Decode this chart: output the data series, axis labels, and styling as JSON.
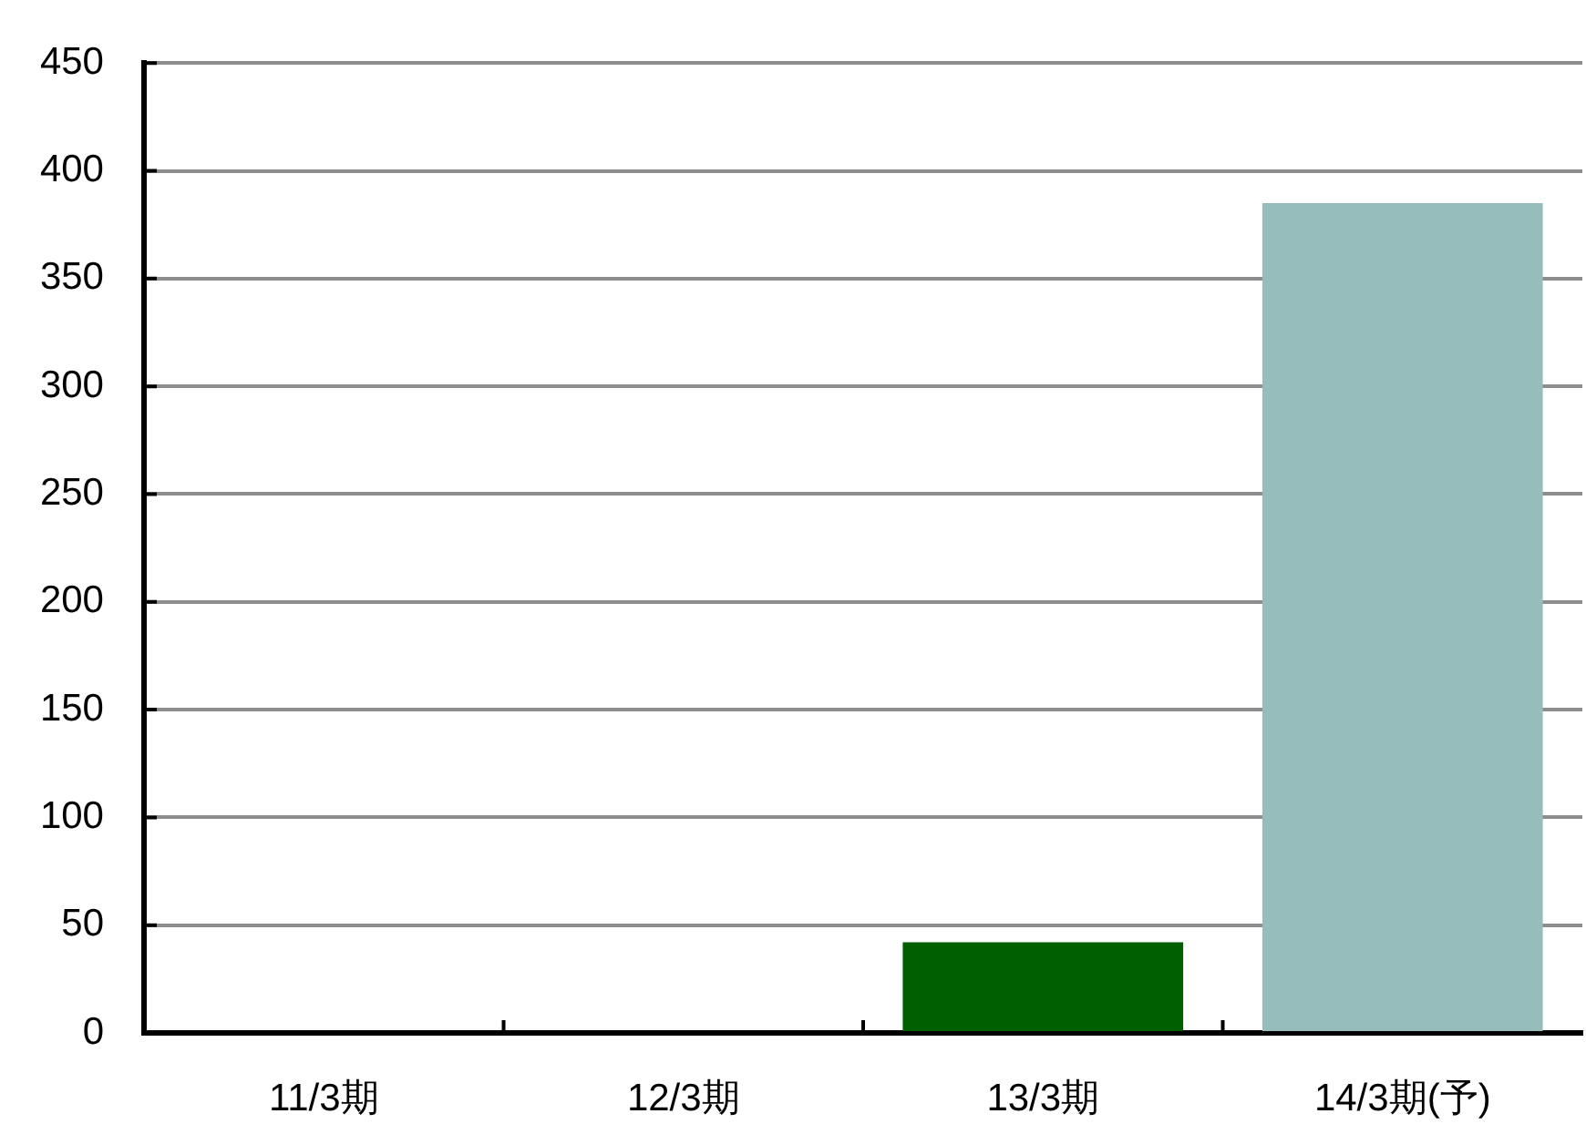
{
  "chart_data": {
    "type": "bar",
    "categories": [
      "11/3期",
      "12/3期",
      "13/3期",
      "14/3期(予)"
    ],
    "values": [
      null,
      null,
      42,
      385
    ],
    "colors": [
      "#006000",
      "#006000",
      "#006000",
      "#96bcbc"
    ],
    "ylim": [
      0,
      450
    ],
    "yticks": [
      0,
      50,
      100,
      150,
      200,
      250,
      300,
      350,
      400,
      450
    ],
    "grid": "y",
    "legend": false
  }
}
